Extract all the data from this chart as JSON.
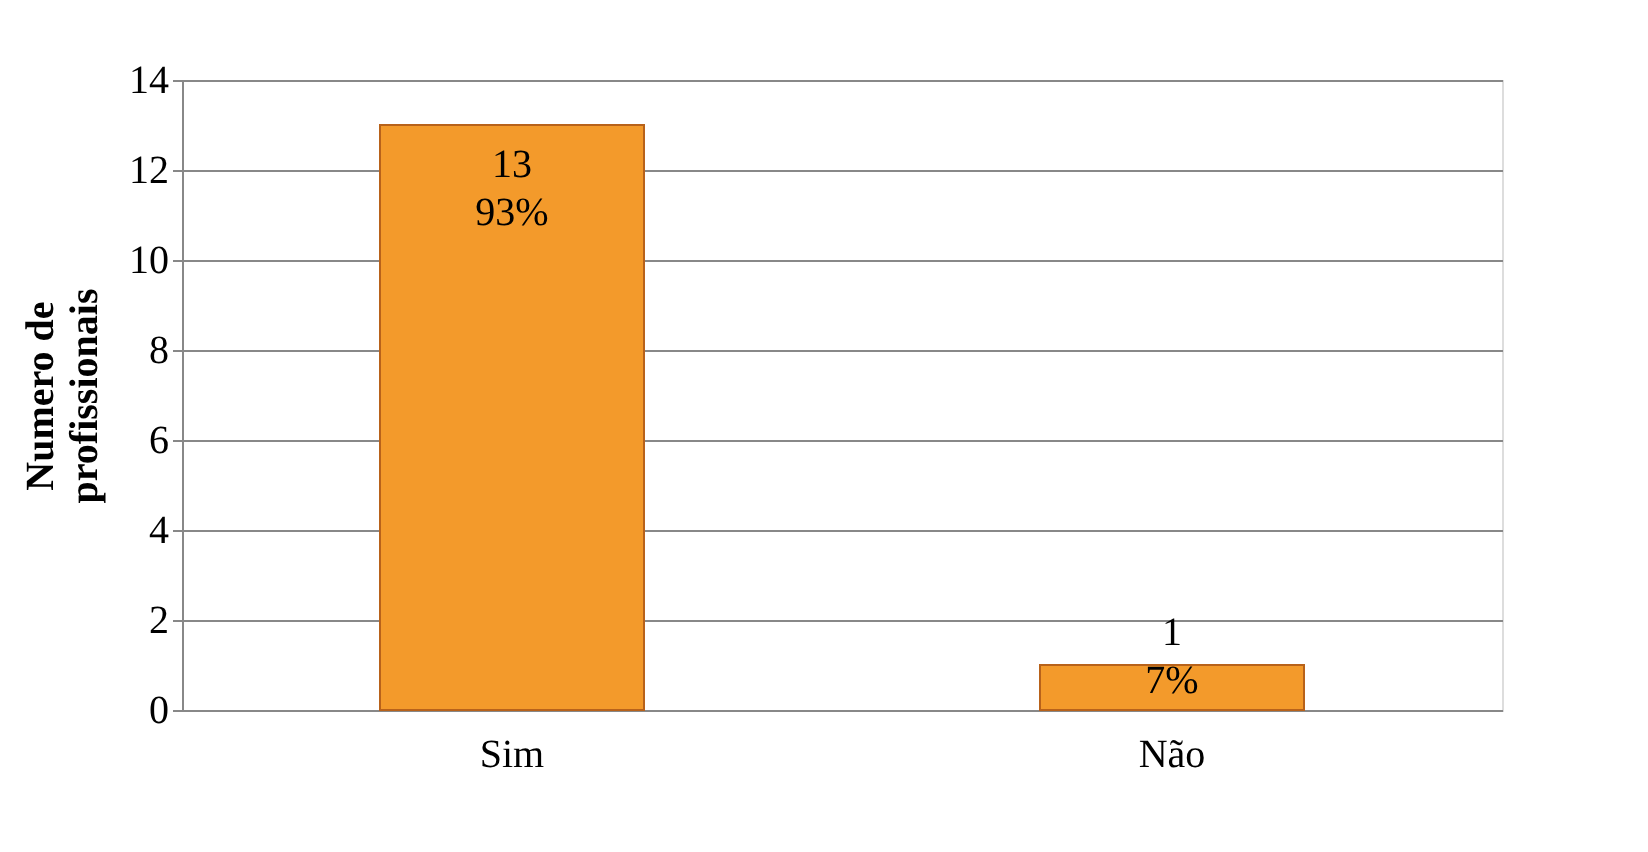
{
  "chart_data": {
    "type": "bar",
    "categories": [
      "Sim",
      "Não"
    ],
    "values": [
      13,
      1
    ],
    "color": "#f39a2b",
    "value_labels": [
      "13\n93%",
      "1\n7%"
    ],
    "ylabel": "Numero de\nprofissionais",
    "ylim": [
      0,
      14
    ],
    "yticks": [
      0,
      2,
      4,
      6,
      8,
      10,
      12,
      14
    ],
    "grid": "y"
  }
}
